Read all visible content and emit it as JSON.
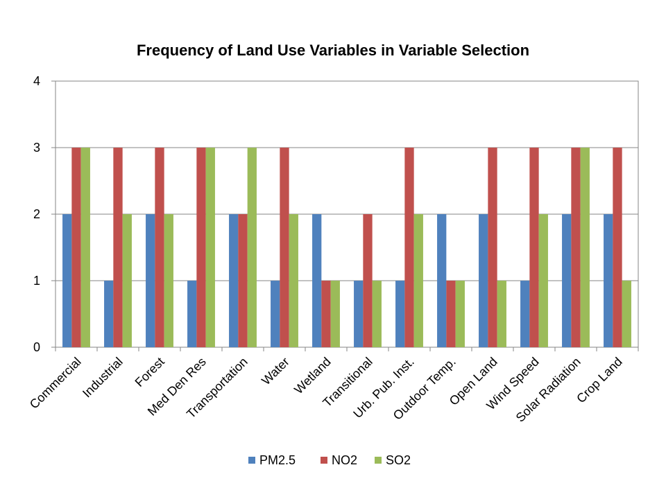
{
  "chart_data": {
    "type": "bar",
    "title": "Frequency of Land Use Variables in Variable Selection",
    "xlabel": "",
    "ylabel": "",
    "ylim": [
      0,
      4
    ],
    "yticks": [
      "0",
      "1",
      "2",
      "3",
      "4"
    ],
    "grid": true,
    "legend_position": "bottom",
    "categories": [
      "Commercial",
      "Industrial",
      "Forest",
      "Med Den Res",
      "Transportation",
      "Water",
      "Wetland",
      "Transitional",
      "Urb. Pub. Inst.",
      "Outdoor Temp.",
      "Open Land",
      "Wind Speed",
      "Solar Radiation",
      "Crop Land"
    ],
    "series": [
      {
        "name": "PM2.5",
        "color": "#4F81BD",
        "values": [
          2,
          1,
          2,
          1,
          2,
          1,
          2,
          1,
          1,
          2,
          2,
          1,
          2,
          2
        ]
      },
      {
        "name": "NO2",
        "color": "#C0504D",
        "values": [
          3,
          3,
          3,
          3,
          2,
          3,
          1,
          2,
          3,
          1,
          3,
          3,
          3,
          3
        ]
      },
      {
        "name": "SO2",
        "color": "#9BBB59",
        "values": [
          3,
          2,
          2,
          3,
          3,
          2,
          1,
          1,
          2,
          1,
          1,
          2,
          3,
          1
        ]
      }
    ]
  }
}
